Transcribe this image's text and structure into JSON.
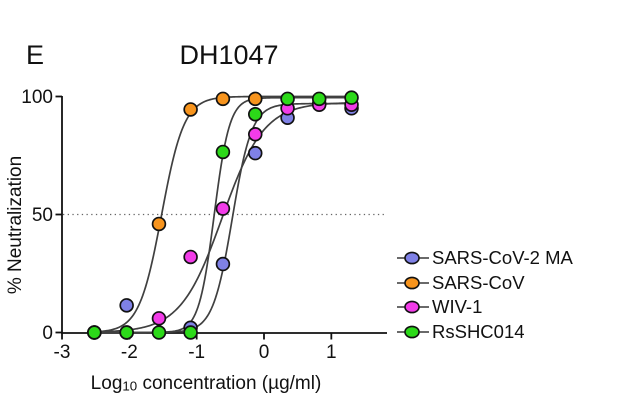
{
  "panel": {
    "letter": "E"
  },
  "xlabel_parts": {
    "prefix": "Log",
    "sub": "10",
    "rest": " concentration (µg/ml)"
  },
  "chart_data": {
    "type": "scatter",
    "title": "DH1047",
    "xlabel": "Log10 concentration (µg/ml)",
    "ylabel": "% Neutralization",
    "xlim": [
      -3,
      1.85
    ],
    "ylim": [
      0,
      100
    ],
    "xticks": [
      "-3",
      "-2",
      "-1",
      "0",
      "1"
    ],
    "xtick_values": [
      -3,
      -2,
      -1,
      0,
      1
    ],
    "yticks": [
      "0",
      "50",
      "100"
    ],
    "ytick_values": [
      0,
      50,
      100
    ],
    "grid": "dotted horizontal line at y=50 only",
    "legend_position": "right",
    "curve_color": "#404040",
    "reference_line_y": 50,
    "series": [
      {
        "name": "SARS-CoV-2 MA",
        "color": "#7f81e6",
        "points": [
          [
            -2.04,
            11.5
          ],
          [
            -1.09,
            2
          ],
          [
            -0.61,
            29
          ],
          [
            -0.13,
            76
          ],
          [
            0.35,
            91
          ],
          [
            0.82,
            97
          ],
          [
            1.3,
            95
          ]
        ],
        "fit": {
          "ec50_log": -0.47,
          "hill": 3.0,
          "top": 97
        }
      },
      {
        "name": "SARS-CoV",
        "color": "#f7941d",
        "points": [
          [
            -2.52,
            0
          ],
          [
            -2.04,
            0
          ],
          [
            -1.56,
            46
          ],
          [
            -1.09,
            94.5
          ],
          [
            -0.61,
            99
          ],
          [
            -0.13,
            99
          ]
        ],
        "fit": {
          "ec50_log": -1.52,
          "hill": 2.6,
          "top": 100
        }
      },
      {
        "name": "WIV-1",
        "color": "#f23ce8",
        "points": [
          [
            -2.52,
            0
          ],
          [
            -1.56,
            6
          ],
          [
            -1.09,
            32
          ],
          [
            -0.61,
            52.5
          ],
          [
            -0.13,
            84
          ],
          [
            0.35,
            95
          ],
          [
            0.82,
            96.5
          ],
          [
            1.3,
            96.5
          ]
        ],
        "fit": {
          "ec50_log": -0.62,
          "hill": 1.4,
          "top": 97.5
        }
      },
      {
        "name": "RsSHC014",
        "color": "#2cd919",
        "points": [
          [
            -2.52,
            0
          ],
          [
            -2.04,
            0
          ],
          [
            -1.56,
            0
          ],
          [
            -1.09,
            0
          ],
          [
            -0.61,
            76.5
          ],
          [
            -0.13,
            92.5
          ],
          [
            0.35,
            99
          ],
          [
            0.82,
            99
          ],
          [
            1.3,
            99.5
          ]
        ],
        "fit": {
          "ec50_log": -0.74,
          "hill": 3.8,
          "top": 99.5
        }
      }
    ]
  }
}
